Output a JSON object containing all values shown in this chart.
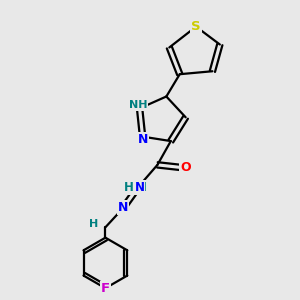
{
  "bg_color": "#e8e8e8",
  "bond_color": "#000000",
  "atom_colors": {
    "N": "#0000ff",
    "O": "#ff0000",
    "S": "#cccc00",
    "F": "#cc00cc",
    "C": "#000000",
    "H": "#008080"
  },
  "figsize": [
    3.0,
    3.0
  ],
  "dpi": 100
}
